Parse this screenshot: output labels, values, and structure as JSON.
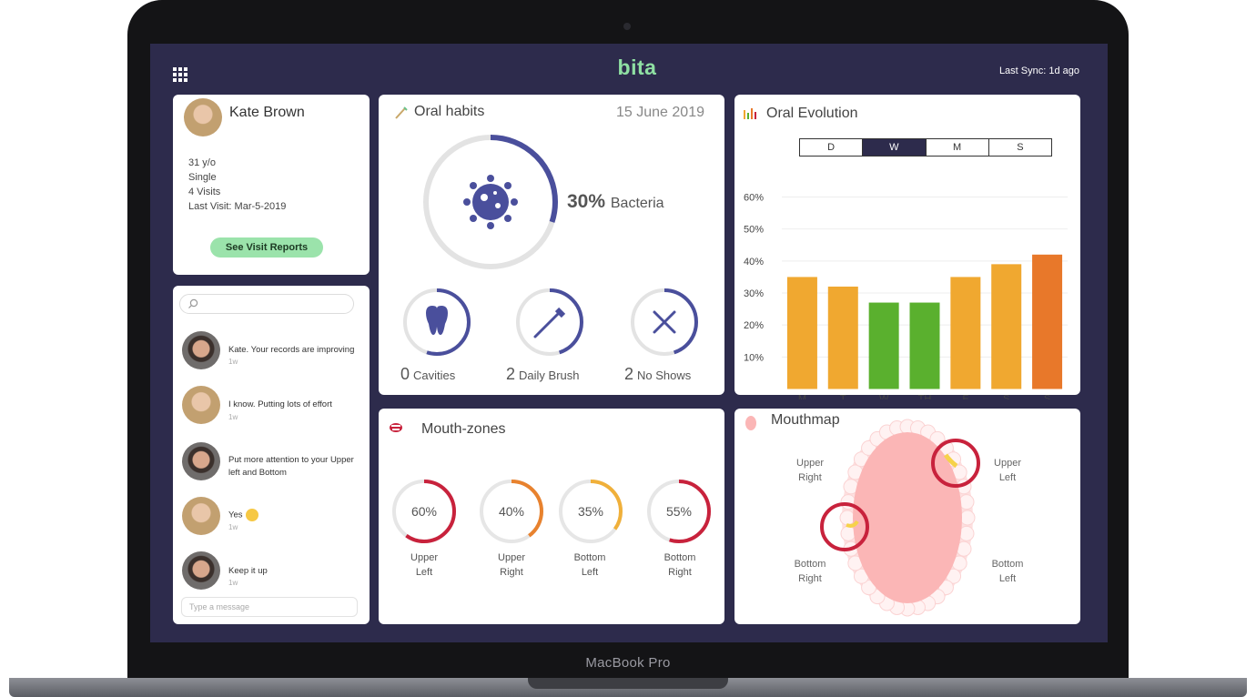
{
  "device": {
    "brand": "MacBook Pro"
  },
  "header": {
    "logo": "bita",
    "last_sync": "Last Sync: 1d ago",
    "menu_icon": "grid-icon"
  },
  "patient": {
    "name": "Kate Brown",
    "age": "31 y/o",
    "status": "Single",
    "visits": "4 Visits",
    "last_visit": "Last Visit: Mar-5-2019",
    "button": "See Visit Reports"
  },
  "chat": {
    "search_placeholder": "",
    "messages": [
      {
        "text": "Kate. Your records are improving",
        "time": "1w",
        "sender": "doctor"
      },
      {
        "text": "I know.  Putting lots of effort",
        "time": "1w",
        "sender": "patient"
      },
      {
        "text": "Put more attention to your Upper left  and Bottom",
        "time": "",
        "sender": "doctor"
      },
      {
        "text": "Yes",
        "time": "1w",
        "sender": "patient"
      },
      {
        "text": "Keep it up",
        "time": "1w",
        "sender": "doctor"
      }
    ],
    "input_placeholder": "Type a message"
  },
  "oral_habits": {
    "title": "Oral habits",
    "date": "15 June 2019",
    "bacteria_percent": 30,
    "bacteria_value": "30%",
    "bacteria_label": "Bacteria",
    "stats": [
      {
        "value": "0",
        "label": "Cavities",
        "fraction": 0.55,
        "icon": "tooth-icon"
      },
      {
        "value": "2",
        "label": "Daily Brush",
        "fraction": 0.45,
        "icon": "toothbrush-icon"
      },
      {
        "value": "2",
        "label": "No Shows",
        "fraction": 0.45,
        "icon": "close-icon"
      }
    ],
    "accent": "#4a4f9c"
  },
  "oral_evolution": {
    "title": "Oral Evolution",
    "tabs": [
      "D",
      "W",
      "M",
      "S"
    ],
    "active_tab": "W"
  },
  "chart_data": {
    "type": "bar",
    "title": "Oral Evolution",
    "categories": [
      "M",
      "T",
      "W",
      "TH",
      "F",
      "S",
      "S"
    ],
    "values": [
      35,
      32,
      27,
      27,
      35,
      39,
      42
    ],
    "colors": [
      "#f0a830",
      "#f0a830",
      "#5ab02e",
      "#5ab02e",
      "#f0a830",
      "#f0a830",
      "#e8782a"
    ],
    "y_ticks": [
      "10%",
      "20%",
      "30%",
      "40%",
      "50%",
      "60%"
    ],
    "ylim": [
      0,
      60
    ],
    "xlabel": "",
    "ylabel": ""
  },
  "mouth_zones": {
    "title": "Mouth-zones",
    "zones": [
      {
        "value": "60%",
        "fraction": 0.6,
        "line1": "Upper",
        "line2": "Left",
        "color": "#c8223c"
      },
      {
        "value": "40%",
        "fraction": 0.4,
        "line1": "Upper",
        "line2": "Right",
        "color": "#e8822e"
      },
      {
        "value": "35%",
        "fraction": 0.35,
        "line1": "Bottom",
        "line2": "Left",
        "color": "#f0b03a"
      },
      {
        "value": "55%",
        "fraction": 0.55,
        "line1": "Bottom",
        "line2": "Right",
        "color": "#c8223c"
      }
    ]
  },
  "mouthmap": {
    "title": "Mouthmap",
    "labels": {
      "upper_right": [
        "Upper",
        "Right"
      ],
      "upper_left": [
        "Upper",
        "Left"
      ],
      "bottom_right": [
        "Bottom",
        "Right"
      ],
      "bottom_left": [
        "Bottom",
        "Left"
      ]
    },
    "highlight_color": "#c8223c",
    "mouth_color": "#fbb6b6"
  }
}
